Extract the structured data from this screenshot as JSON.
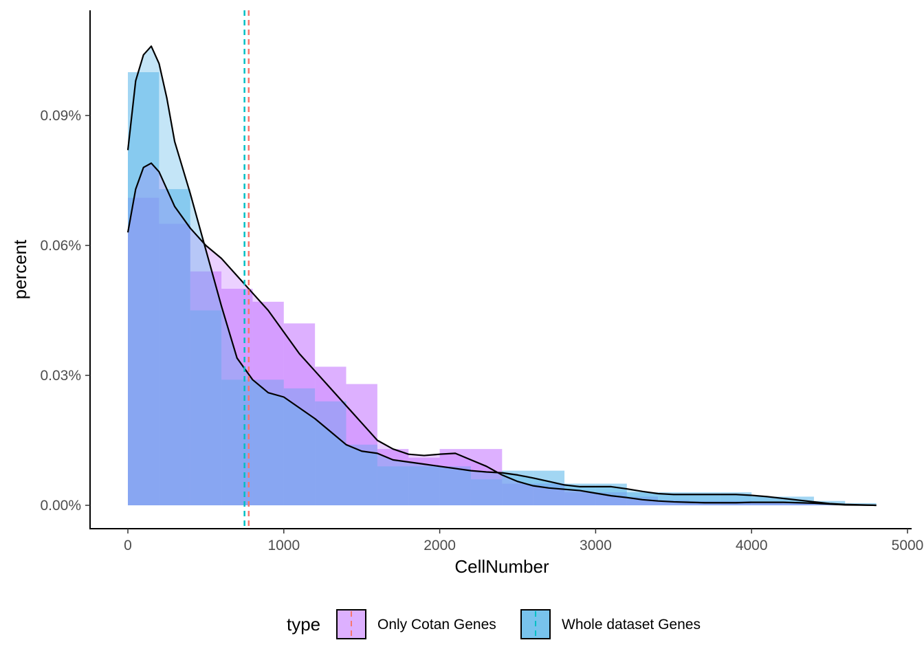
{
  "chart_data": {
    "type": "histogram+density",
    "xlabel": "CellNumber",
    "ylabel": "percent",
    "xlim": [
      -250,
      5000
    ],
    "ylim": [
      -5e-05,
      0.00114
    ],
    "x_ticks": [
      0,
      1000,
      2000,
      3000,
      4000,
      5000
    ],
    "x_tick_labels": [
      "0",
      "1000",
      "2000",
      "3000",
      "4000",
      "5000"
    ],
    "y_ticks": [
      0,
      0.0003,
      0.0006,
      0.0009
    ],
    "y_tick_labels": [
      "0.00%",
      "0.03%",
      "0.06%",
      "0.09%"
    ],
    "grid": false,
    "legend": {
      "title": "type",
      "placement": "bottom",
      "entries": [
        "Only Cotan Genes",
        "Whole dataset Genes"
      ]
    },
    "bin_width": 200,
    "bin_starts": [
      0,
      200,
      400,
      600,
      800,
      1000,
      1200,
      1400,
      1600,
      1800,
      2000,
      2200,
      2400,
      2600,
      2800,
      3000,
      3200,
      3400,
      3600,
      3800,
      4000,
      4200,
      4400,
      4600
    ],
    "series": [
      {
        "name": "Only Cotan Genes",
        "fill_color": "#C77CFF",
        "line_color": "#F8766D",
        "histogram": [
          0.00071,
          0.00065,
          0.00054,
          0.0005,
          0.00047,
          0.00042,
          0.00032,
          0.00028,
          0.00013,
          0.00011,
          0.00013,
          0.00013,
          5e-05,
          5e-05,
          3e-05,
          3e-05,
          2e-05,
          1.2e-05,
          1e-05,
          1e-05,
          8e-06,
          4e-06,
          2e-06,
          1e-06
        ],
        "mean": 775,
        "density": {
          "x": [
            0,
            50,
            100,
            150,
            200,
            250,
            300,
            400,
            500,
            600,
            700,
            800,
            900,
            1000,
            1100,
            1200,
            1300,
            1400,
            1500,
            1600,
            1700,
            1800,
            1900,
            2000,
            2100,
            2200,
            2300,
            2400,
            2500,
            2600,
            2700,
            2800,
            2900,
            3000,
            3100,
            3200,
            3300,
            3400,
            3500,
            3600,
            3700,
            3800,
            3900,
            4000,
            4100,
            4200,
            4300,
            4400,
            4500,
            4600,
            4700,
            4800
          ],
          "y": [
            0.00063,
            0.00073,
            0.00078,
            0.00079,
            0.00077,
            0.00073,
            0.00069,
            0.00064,
            0.0006,
            0.00057,
            0.00053,
            0.00049,
            0.00045,
            0.0004,
            0.00035,
            0.00031,
            0.00027,
            0.00023,
            0.00019,
            0.00015,
            0.00013,
            0.000118,
            0.000115,
            0.000118,
            0.00012,
            0.000105,
            9e-05,
            7e-05,
            5.5e-05,
            4.5e-05,
            4e-05,
            3.7e-05,
            3.4e-05,
            2.8e-05,
            2.2e-05,
            1.8e-05,
            1.3e-05,
            1e-05,
            8e-06,
            7e-06,
            6e-06,
            6e-06,
            6e-06,
            7e-06,
            7e-06,
            7e-06,
            6e-06,
            5e-06,
            3e-06,
            1e-06,
            5e-07,
            0.0
          ]
        }
      },
      {
        "name": "Whole dataset Genes",
        "fill_color": "#56B4E9",
        "line_color": "#00BFC4",
        "histogram": [
          0.001,
          0.00073,
          0.00045,
          0.00029,
          0.00029,
          0.00027,
          0.00024,
          0.00014,
          9e-05,
          9e-05,
          9e-05,
          6e-05,
          8e-05,
          8e-05,
          5e-05,
          5e-05,
          3e-05,
          3e-05,
          3e-05,
          3e-05,
          2e-05,
          2e-05,
          1e-05,
          5e-06
        ],
        "mean": 748,
        "density": {
          "x": [
            0,
            50,
            100,
            150,
            200,
            250,
            300,
            400,
            500,
            600,
            700,
            800,
            900,
            1000,
            1100,
            1200,
            1300,
            1400,
            1500,
            1600,
            1700,
            1800,
            1900,
            2000,
            2100,
            2200,
            2300,
            2400,
            2500,
            2600,
            2700,
            2800,
            2900,
            3000,
            3100,
            3200,
            3300,
            3400,
            3500,
            3600,
            3700,
            3800,
            3900,
            4000,
            4100,
            4200,
            4300,
            4400,
            4500,
            4600,
            4700,
            4800
          ],
          "y": [
            0.00082,
            0.00098,
            0.00104,
            0.00106,
            0.00102,
            0.00094,
            0.00084,
            0.00072,
            0.00059,
            0.00046,
            0.00034,
            0.00029,
            0.00026,
            0.00025,
            0.000225,
            0.0002,
            0.00017,
            0.00014,
            0.000125,
            0.00012,
            0.000105,
            0.0001,
            9.5e-05,
            9e-05,
            8.5e-05,
            8e-05,
            7.7e-05,
            7.5e-05,
            7e-05,
            6.3e-05,
            5.5e-05,
            4.7e-05,
            4.3e-05,
            4.3e-05,
            4.3e-05,
            3.8e-05,
            3.2e-05,
            2.7e-05,
            2.5e-05,
            2.5e-05,
            2.5e-05,
            2.5e-05,
            2.5e-05,
            2.3e-05,
            2e-05,
            1.6e-05,
            1.2e-05,
            8e-06,
            4e-06,
            2e-06,
            1e-06,
            0.0
          ]
        }
      }
    ]
  }
}
